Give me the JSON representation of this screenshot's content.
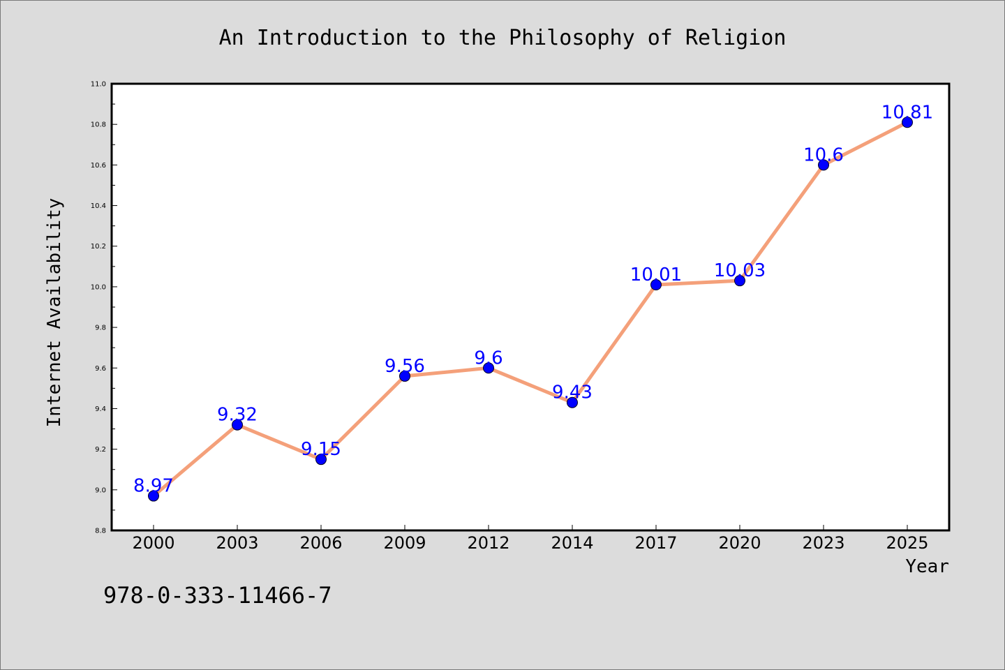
{
  "isbn": "978-0-333-11466-7",
  "colors": {
    "line": "#f4a07a",
    "marker": "#0000ff",
    "label": "#0000ff",
    "background": "#dcdcdc",
    "plot_background": "#ffffff"
  },
  "chart_data": {
    "type": "line",
    "title": "An Introduction to the Philosophy of Religion",
    "xlabel": "Year",
    "ylabel": "Internet Availability",
    "categories": [
      "2000",
      "2003",
      "2006",
      "2009",
      "2012",
      "2014",
      "2017",
      "2020",
      "2023",
      "2025"
    ],
    "series": [
      {
        "values": [
          8.97,
          9.32,
          9.15,
          9.56,
          9.6,
          9.43,
          10.01,
          10.03,
          10.6,
          10.81
        ]
      }
    ],
    "data_labels": [
      "8.97",
      "9.32",
      "9.15",
      "9.56",
      "9.6",
      "9.43",
      "10.01",
      "10.03",
      "10.6",
      "10.81"
    ],
    "ylim": [
      8.8,
      11.0
    ],
    "yticks": [
      "8.8",
      "9.0",
      "9.2",
      "9.4",
      "9.6",
      "9.8",
      "10.0",
      "10.2",
      "10.4",
      "10.6",
      "10.8",
      "11.0"
    ],
    "grid": false,
    "legend": "none"
  }
}
